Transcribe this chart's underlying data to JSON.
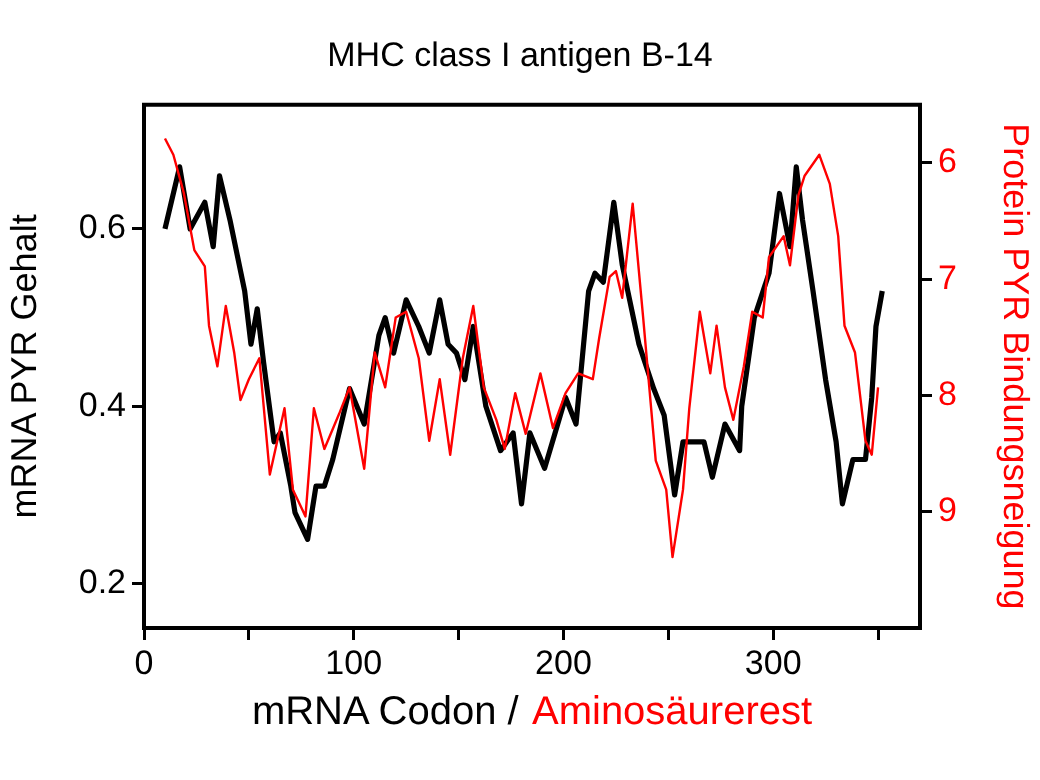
{
  "chart_data": {
    "type": "line",
    "title": "MHC class I antigen B-14",
    "xlabel": "mRNA Codon / Aminosäurerest",
    "ylabel": "mRNA PYR Gehalt",
    "y2label": "Protein PYR Bindungsneigung",
    "xlim": [
      0,
      370
    ],
    "xticks": [
      0,
      {
        "value": 50,
        "label": null
      },
      100,
      {
        "value": 150,
        "label": null
      },
      200,
      {
        "value": 250,
        "label": null
      },
      300,
      {
        "value": 350,
        "label": null
      }
    ],
    "ylim": [
      0.15,
      0.74
    ],
    "yticks": [
      0.2,
      0.4,
      0.6
    ],
    "y2lim": [
      10,
      5.5
    ],
    "y2ticks": [
      6,
      7,
      8,
      9
    ],
    "marker": "none",
    "line_style": "solid",
    "legend": false,
    "series": [
      {
        "color": "#000000",
        "x": [
          10,
          17,
          22,
          29,
          33,
          36,
          41,
          48,
          51,
          54,
          57,
          62,
          65,
          70,
          72,
          78,
          82,
          86,
          90,
          98,
          105,
          112,
          115,
          119,
          125,
          131,
          136,
          141,
          145,
          149,
          153,
          157,
          163,
          170,
          176,
          180,
          184,
          191,
          196,
          201,
          206,
          212,
          215,
          219,
          224,
          228,
          236,
          243,
          248,
          253,
          257,
          267,
          271,
          277,
          284,
          285,
          291,
          298,
          303,
          308,
          311,
          314,
          319,
          325,
          330,
          333,
          338,
          344,
          347,
          349,
          352
        ],
        "values": [
          0.6,
          0.67,
          0.6,
          0.63,
          0.58,
          0.66,
          0.61,
          0.53,
          0.47,
          0.51,
          0.45,
          0.36,
          0.37,
          0.31,
          0.28,
          0.25,
          0.31,
          0.31,
          0.34,
          0.42,
          0.38,
          0.48,
          0.5,
          0.46,
          0.52,
          0.49,
          0.46,
          0.52,
          0.47,
          0.46,
          0.43,
          0.49,
          0.4,
          0.35,
          0.37,
          0.29,
          0.37,
          0.33,
          0.37,
          0.41,
          0.38,
          0.53,
          0.55,
          0.54,
          0.63,
          0.56,
          0.47,
          0.42,
          0.39,
          0.3,
          0.36,
          0.36,
          0.32,
          0.38,
          0.35,
          0.4,
          0.5,
          0.55,
          0.64,
          0.58,
          0.67,
          0.61,
          0.53,
          0.43,
          0.36,
          0.29,
          0.34,
          0.34,
          0.41,
          0.49,
          0.53
        ]
      },
      {
        "color": "#ff0000",
        "axis": "y2",
        "x": [
          10,
          14,
          19,
          24,
          29,
          31,
          35,
          39,
          43,
          46,
          50,
          55,
          60,
          67,
          71,
          77,
          81,
          86,
          93,
          98,
          105,
          110,
          115,
          120,
          125,
          131,
          136,
          141,
          146,
          152,
          157,
          162,
          168,
          172,
          177,
          182,
          189,
          195,
          201,
          207,
          214,
          217,
          222,
          225,
          228,
          233,
          238,
          244,
          249,
          252,
          257,
          260,
          265,
          270,
          273,
          277,
          281,
          286,
          290,
          295,
          298,
          305,
          308,
          312,
          315,
          322,
          327,
          331,
          334,
          339,
          344,
          347,
          350
        ],
        "values": [
          5.79,
          5.93,
          6.26,
          6.75,
          6.89,
          7.4,
          7.75,
          7.23,
          7.63,
          8.04,
          7.86,
          7.68,
          8.68,
          8.11,
          8.81,
          9.04,
          8.11,
          8.46,
          8.16,
          7.93,
          8.63,
          7.63,
          7.93,
          7.33,
          7.28,
          7.68,
          8.39,
          7.86,
          8.51,
          7.68,
          7.23,
          7.93,
          8.21,
          8.46,
          7.98,
          8.33,
          7.81,
          8.28,
          7.98,
          7.81,
          7.86,
          7.51,
          6.98,
          6.93,
          7.16,
          6.35,
          7.33,
          8.56,
          8.81,
          9.39,
          8.81,
          8.11,
          7.28,
          7.81,
          7.4,
          7.93,
          8.21,
          7.75,
          7.28,
          7.33,
          6.81,
          6.63,
          6.88,
          6.28,
          6.11,
          5.93,
          6.18,
          6.63,
          7.4,
          7.63,
          8.39,
          8.51,
          7.93
        ]
      }
    ]
  }
}
